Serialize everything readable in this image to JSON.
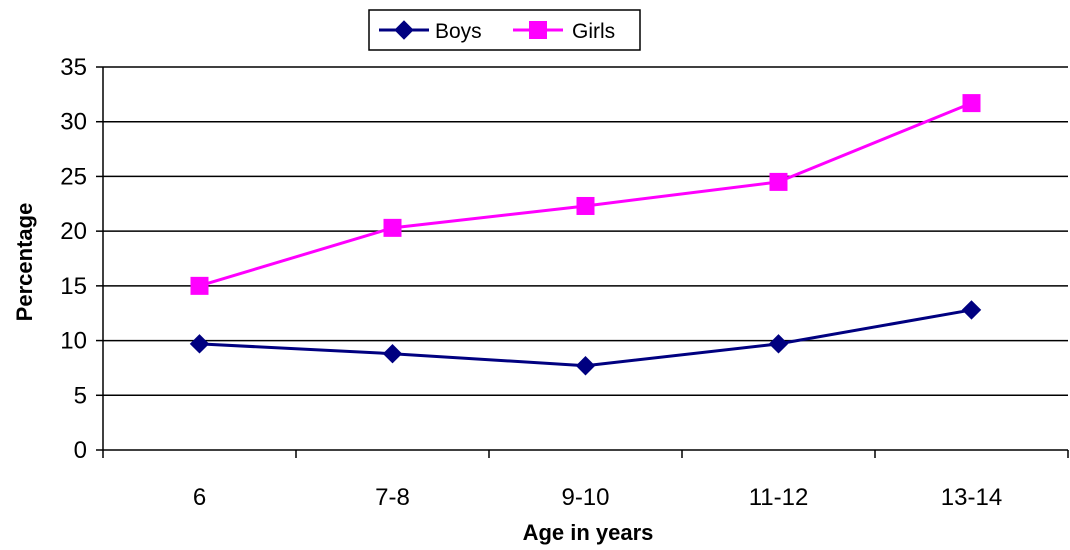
{
  "chart_data": {
    "type": "line",
    "title": "",
    "xlabel": "Age in years",
    "ylabel": "Percentage",
    "categories": [
      "6",
      "7-8",
      "9-10",
      "11-12",
      "13-14"
    ],
    "ylim": [
      0,
      35
    ],
    "yticks": [
      "0",
      "5",
      "10",
      "15",
      "20",
      "25",
      "30",
      "35"
    ],
    "grid": true,
    "legend_position": "top",
    "series": [
      {
        "name": "Boys",
        "values": [
          9.7,
          8.8,
          7.7,
          9.7,
          12.8
        ],
        "color": "#000080",
        "marker": "diamond"
      },
      {
        "name": "Girls",
        "values": [
          15.0,
          20.3,
          22.3,
          24.5,
          31.7
        ],
        "color": "#ff00ff",
        "marker": "square"
      }
    ]
  }
}
